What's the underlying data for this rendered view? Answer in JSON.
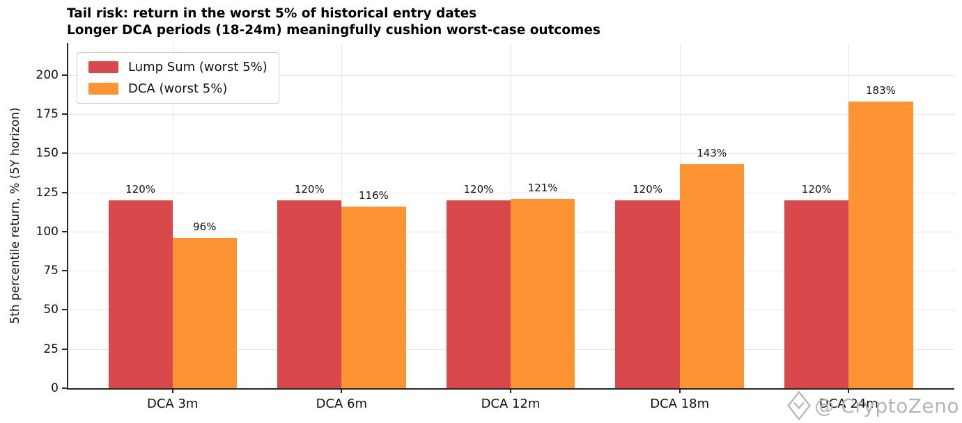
{
  "chart_data": {
    "type": "bar",
    "title": "Tail risk: return in the worst 5% of historical entry dates",
    "subtitle": "Longer DCA periods (18-24m) meaningfully cushion worst-case outcomes",
    "categories": [
      "DCA 3m",
      "DCA 6m",
      "DCA 12m",
      "DCA 18m",
      "DCA 24m"
    ],
    "series": [
      {
        "name": "Lump Sum (worst 5%)",
        "color": "#d9494b",
        "values": [
          120,
          120,
          120,
          120,
          120
        ]
      },
      {
        "name": "DCA (worst 5%)",
        "color": "#fd9333",
        "values": [
          96,
          116,
          121,
          143,
          183
        ]
      }
    ],
    "value_label_suffix": "%",
    "ylabel": "5th percentile return, % (5Y horizon)",
    "yticks": [
      0,
      25,
      50,
      75,
      100,
      125,
      150,
      175,
      200
    ],
    "ylim": [
      0,
      220.4
    ],
    "grid": true,
    "legend_position": "upper-left",
    "bar_width_fraction": 0.38,
    "colors": {
      "grid": "#e7e7e7",
      "spine": "#262626",
      "label_text": "#111111"
    },
    "watermark": "@ CryptoZeno"
  }
}
